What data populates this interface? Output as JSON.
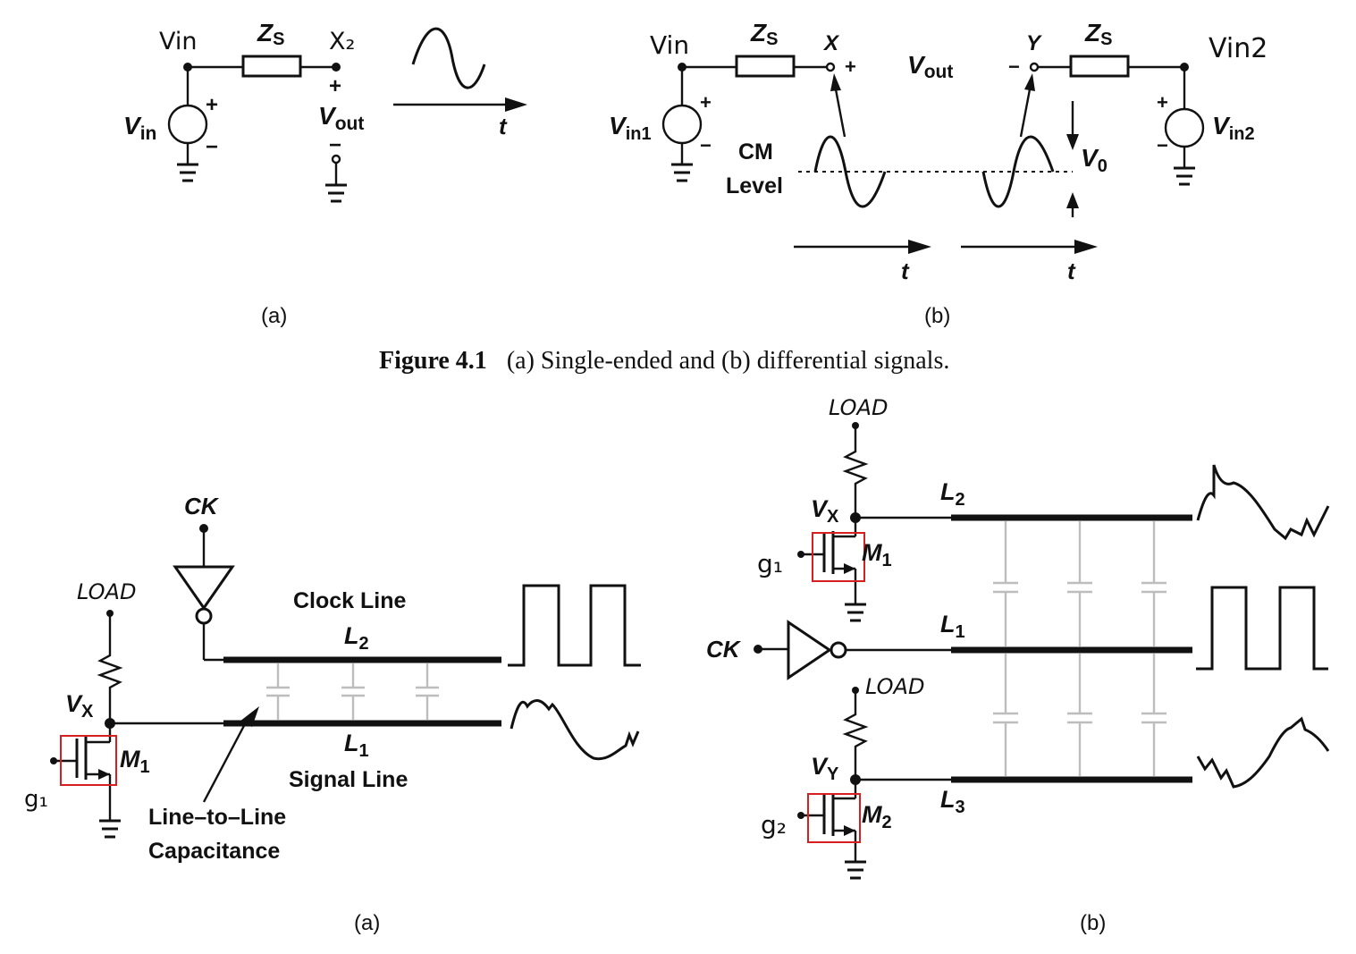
{
  "fig41": {
    "a": {
      "node_in_hand": "Vin",
      "node_out_hand": "X₂",
      "zs": "Z",
      "zs_sub": "S",
      "src": "V",
      "src_sub": "in",
      "out": "V",
      "out_sub": "out",
      "plus": "+",
      "minus": "−",
      "t": "t",
      "panel": "(a)"
    },
    "b": {
      "vin_hand": "Vin",
      "vin2_hand": "Vin2",
      "zs": "Z",
      "zs_sub": "S",
      "x": "X",
      "y": "Y",
      "vout": "V",
      "vout_sub": "out",
      "src1": "V",
      "src1_sub": "in1",
      "src2": "V",
      "src2_sub": "in2",
      "cm1": "CM",
      "cm2": "Level",
      "v0": "V",
      "v0_sub": "0",
      "plus": "+",
      "minus": "−",
      "t": "t",
      "panel": "(b)"
    },
    "caption_label": "Figure 4.1",
    "caption_text": "(a) Single-ended and (b) differential signals."
  },
  "fig42": {
    "a": {
      "ck": "CK",
      "load_hand": "LOAD",
      "clock_line": "Clock Line",
      "l2": "L",
      "l2_sub": "2",
      "l1": "L",
      "l1_sub": "1",
      "signal_line": "Signal Line",
      "vx": "V",
      "vx_sub": "X",
      "m1": "M",
      "m1_sub": "1",
      "g1_hand": "g₁",
      "cap1": "Line–to–Line",
      "cap2": "Capacitance",
      "panel": "(a)"
    },
    "b": {
      "load_hand_top": "LOAD",
      "load_hand_mid": "LOAD",
      "vx": "V",
      "vx_sub": "X",
      "vy": "V",
      "vy_sub": "Y",
      "l2": "L",
      "l2_sub": "2",
      "l1": "L",
      "l1_sub": "1",
      "l3": "L",
      "l3_sub": "3",
      "m1": "M",
      "m1_sub": "1",
      "m2": "M",
      "m2_sub": "2",
      "g1_hand": "g₁",
      "g2_hand": "g₂",
      "ck": "CK",
      "panel": "(b)"
    }
  },
  "colors": {
    "ink": "#111111",
    "highlight": "#d62020",
    "capacitor": "#bdbdbd"
  }
}
